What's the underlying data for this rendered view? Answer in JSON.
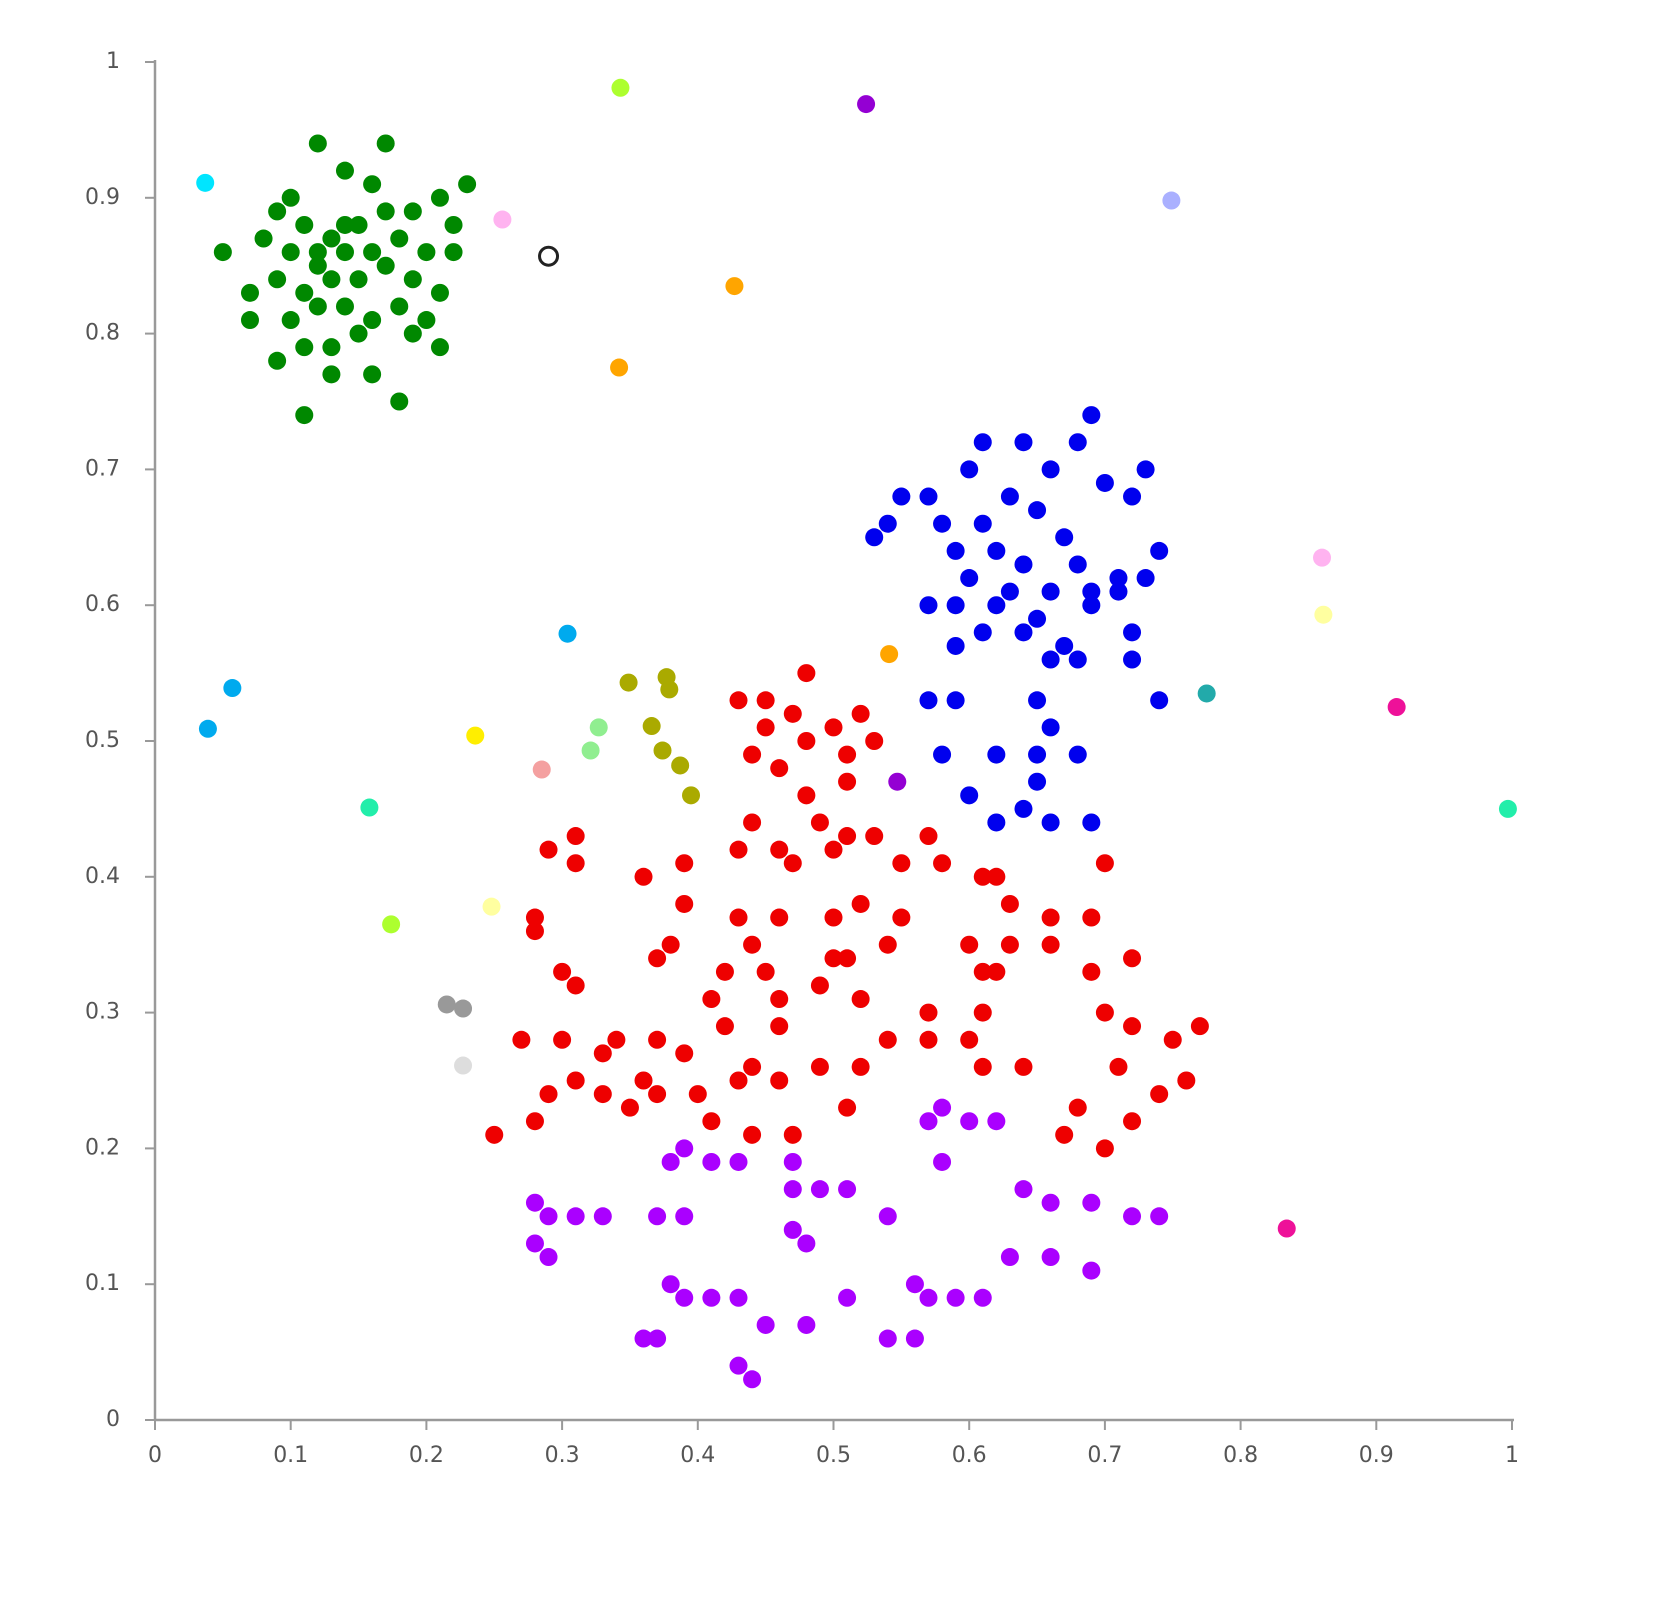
{
  "chart_data": {
    "type": "scatter",
    "xlim": [
      0,
      1
    ],
    "ylim": [
      0,
      1
    ],
    "xticks": [
      0,
      0.1,
      0.2,
      0.3,
      0.4,
      0.5,
      0.6,
      0.7,
      0.8,
      0.9,
      1
    ],
    "yticks": [
      0,
      0.1,
      0.2,
      0.3,
      0.4,
      0.5,
      0.6,
      0.7,
      0.8,
      0.9,
      1
    ],
    "grid": false,
    "series": [
      {
        "color": "#008800",
        "x": [
          0.12,
          0.17,
          0.14,
          0.23,
          0.05,
          0.09,
          0.11,
          0.13,
          0.15,
          0.17,
          0.19,
          0.21,
          0.22,
          0.08,
          0.1,
          0.12,
          0.14,
          0.16,
          0.18,
          0.2,
          0.22,
          0.07,
          0.09,
          0.11,
          0.13,
          0.15,
          0.17,
          0.19,
          0.21,
          0.07,
          0.1,
          0.12,
          0.14,
          0.16,
          0.18,
          0.2,
          0.09,
          0.11,
          0.13,
          0.15,
          0.21,
          0.13,
          0.16,
          0.18,
          0.11,
          0.19,
          0.14,
          0.16,
          0.1,
          0.12
        ],
        "values": [
          0.94,
          0.94,
          0.92,
          0.91,
          0.86,
          0.89,
          0.88,
          0.87,
          0.88,
          0.89,
          0.89,
          0.9,
          0.88,
          0.87,
          0.86,
          0.85,
          0.86,
          0.86,
          0.87,
          0.86,
          0.86,
          0.83,
          0.84,
          0.83,
          0.84,
          0.84,
          0.85,
          0.84,
          0.83,
          0.81,
          0.81,
          0.82,
          0.82,
          0.81,
          0.82,
          0.81,
          0.78,
          0.79,
          0.79,
          0.8,
          0.79,
          0.77,
          0.77,
          0.75,
          0.74,
          0.8,
          0.88,
          0.91,
          0.9,
          0.86
        ]
      },
      {
        "color": "#0000ee",
        "x": [
          0.69,
          0.61,
          0.64,
          0.68,
          0.6,
          0.66,
          0.73,
          0.7,
          0.55,
          0.57,
          0.63,
          0.72,
          0.54,
          0.58,
          0.61,
          0.65,
          0.67,
          0.53,
          0.59,
          0.62,
          0.64,
          0.68,
          0.71,
          0.74,
          0.6,
          0.63,
          0.66,
          0.69,
          0.73,
          0.57,
          0.59,
          0.62,
          0.65,
          0.69,
          0.71,
          0.59,
          0.61,
          0.64,
          0.67,
          0.72,
          0.66,
          0.68,
          0.72,
          0.74,
          0.57,
          0.59,
          0.65,
          0.66,
          0.58,
          0.62,
          0.65,
          0.68,
          0.65,
          0.6,
          0.64,
          0.62,
          0.66,
          0.69
        ],
        "values": [
          0.74,
          0.72,
          0.72,
          0.72,
          0.7,
          0.7,
          0.7,
          0.69,
          0.68,
          0.68,
          0.68,
          0.68,
          0.66,
          0.66,
          0.66,
          0.67,
          0.65,
          0.65,
          0.64,
          0.64,
          0.63,
          0.63,
          0.62,
          0.64,
          0.62,
          0.61,
          0.61,
          0.61,
          0.62,
          0.6,
          0.6,
          0.6,
          0.59,
          0.6,
          0.61,
          0.57,
          0.58,
          0.58,
          0.57,
          0.58,
          0.56,
          0.56,
          0.56,
          0.53,
          0.53,
          0.53,
          0.53,
          0.51,
          0.49,
          0.49,
          0.49,
          0.49,
          0.47,
          0.46,
          0.45,
          0.44,
          0.44,
          0.44
        ]
      },
      {
        "color": "#ee0000",
        "x": [
          0.48,
          0.43,
          0.45,
          0.52,
          0.47,
          0.45,
          0.5,
          0.48,
          0.53,
          0.44,
          0.51,
          0.46,
          0.51,
          0.48,
          0.44,
          0.49,
          0.51,
          0.53,
          0.57,
          0.29,
          0.31,
          0.43,
          0.46,
          0.5,
          0.55,
          0.58,
          0.31,
          0.36,
          0.39,
          0.47,
          0.61,
          0.7,
          0.62,
          0.39,
          0.28,
          0.43,
          0.5,
          0.52,
          0.55,
          0.63,
          0.66,
          0.69,
          0.28,
          0.46,
          0.44,
          0.54,
          0.6,
          0.63,
          0.66,
          0.37,
          0.38,
          0.5,
          0.51,
          0.72,
          0.3,
          0.42,
          0.45,
          0.61,
          0.62,
          0.69,
          0.31,
          0.41,
          0.46,
          0.49,
          0.52,
          0.57,
          0.61,
          0.7,
          0.72,
          0.77,
          0.27,
          0.3,
          0.34,
          0.37,
          0.42,
          0.46,
          0.54,
          0.57,
          0.6,
          0.75,
          0.33,
          0.39,
          0.44,
          0.49,
          0.52,
          0.61,
          0.64,
          0.71,
          0.31,
          0.36,
          0.4,
          0.46,
          0.76,
          0.29,
          0.33,
          0.37,
          0.43,
          0.74,
          0.28,
          0.35,
          0.41,
          0.51,
          0.68,
          0.25,
          0.44,
          0.47,
          0.67,
          0.7,
          0.72
        ],
        "values": [
          0.55,
          0.53,
          0.53,
          0.52,
          0.52,
          0.51,
          0.51,
          0.5,
          0.5,
          0.49,
          0.49,
          0.48,
          0.47,
          0.46,
          0.44,
          0.44,
          0.43,
          0.43,
          0.43,
          0.42,
          0.43,
          0.42,
          0.42,
          0.42,
          0.41,
          0.41,
          0.41,
          0.4,
          0.41,
          0.41,
          0.4,
          0.41,
          0.4,
          0.38,
          0.37,
          0.37,
          0.37,
          0.38,
          0.37,
          0.38,
          0.37,
          0.37,
          0.36,
          0.37,
          0.35,
          0.35,
          0.35,
          0.35,
          0.35,
          0.34,
          0.35,
          0.34,
          0.34,
          0.34,
          0.33,
          0.33,
          0.33,
          0.33,
          0.33,
          0.33,
          0.32,
          0.31,
          0.31,
          0.32,
          0.31,
          0.3,
          0.3,
          0.3,
          0.29,
          0.29,
          0.28,
          0.28,
          0.28,
          0.28,
          0.29,
          0.29,
          0.28,
          0.28,
          0.28,
          0.28,
          0.27,
          0.27,
          0.26,
          0.26,
          0.26,
          0.26,
          0.26,
          0.26,
          0.25,
          0.25,
          0.24,
          0.25,
          0.25,
          0.24,
          0.24,
          0.24,
          0.25,
          0.24,
          0.22,
          0.23,
          0.22,
          0.23,
          0.23,
          0.21,
          0.21,
          0.21,
          0.21,
          0.2,
          0.22
        ]
      },
      {
        "color": "#aa00ff",
        "x": [
          0.58,
          0.57,
          0.6,
          0.62,
          0.39,
          0.38,
          0.41,
          0.43,
          0.47,
          0.58,
          0.28,
          0.29,
          0.31,
          0.33,
          0.37,
          0.39,
          0.47,
          0.49,
          0.51,
          0.54,
          0.64,
          0.66,
          0.69,
          0.72,
          0.74,
          0.47,
          0.48,
          0.28,
          0.29,
          0.63,
          0.66,
          0.69,
          0.38,
          0.39,
          0.41,
          0.43,
          0.56,
          0.57,
          0.59,
          0.61,
          0.51,
          0.45,
          0.48,
          0.36,
          0.37,
          0.54,
          0.56,
          0.43,
          0.44
        ],
        "values": [
          0.23,
          0.22,
          0.22,
          0.22,
          0.2,
          0.19,
          0.19,
          0.19,
          0.19,
          0.19,
          0.16,
          0.15,
          0.15,
          0.15,
          0.15,
          0.15,
          0.17,
          0.17,
          0.17,
          0.15,
          0.17,
          0.16,
          0.16,
          0.15,
          0.15,
          0.14,
          0.13,
          0.13,
          0.12,
          0.12,
          0.12,
          0.11,
          0.1,
          0.09,
          0.09,
          0.09,
          0.1,
          0.09,
          0.09,
          0.09,
          0.09,
          0.07,
          0.07,
          0.06,
          0.06,
          0.06,
          0.06,
          0.04,
          0.03
        ]
      },
      {
        "color": "#adff2f",
        "x": [
          0.343,
          0.174
        ],
        "values": [
          0.981,
          0.365
        ]
      },
      {
        "color": "#9400d3",
        "x": [
          0.524,
          0.547
        ],
        "values": [
          0.969,
          0.47
        ]
      },
      {
        "color": "#00e5ff",
        "x": [
          0.037
        ],
        "values": [
          0.911
        ]
      },
      {
        "color": "#ffb3f0",
        "x": [
          0.256,
          0.86
        ],
        "values": [
          0.884,
          0.635
        ]
      },
      {
        "color": "#222222",
        "marker": "open",
        "x": [
          0.29
        ],
        "values": [
          0.857
        ]
      },
      {
        "color": "#ffa500",
        "x": [
          0.427,
          0.342,
          0.541
        ],
        "values": [
          0.835,
          0.775,
          0.564
        ]
      },
      {
        "color": "#aab0ff",
        "x": [
          0.749
        ],
        "values": [
          0.898
        ]
      },
      {
        "color": "#ffffa0",
        "x": [
          0.861,
          0.248
        ],
        "values": [
          0.593,
          0.378
        ]
      },
      {
        "color": "#00aaee",
        "x": [
          0.304,
          0.057,
          0.039
        ],
        "values": [
          0.579,
          0.539,
          0.509
        ]
      },
      {
        "color": "#aaaa00",
        "x": [
          0.349,
          0.377,
          0.379,
          0.366,
          0.374,
          0.387,
          0.395
        ],
        "values": [
          0.543,
          0.547,
          0.538,
          0.511,
          0.493,
          0.482,
          0.46
        ]
      },
      {
        "color": "#90ee90",
        "x": [
          0.327,
          0.321
        ],
        "values": [
          0.51,
          0.493
        ]
      },
      {
        "color": "#ffee00",
        "x": [
          0.236
        ],
        "values": [
          0.504
        ]
      },
      {
        "color": "#f4a0a0",
        "x": [
          0.285
        ],
        "values": [
          0.479
        ]
      },
      {
        "color": "#22eeaa",
        "x": [
          0.158,
          0.997
        ],
        "values": [
          0.451,
          0.45
        ]
      },
      {
        "color": "#22aaaa",
        "x": [
          0.775
        ],
        "values": [
          0.535
        ]
      },
      {
        "color": "#ee1199",
        "x": [
          0.915,
          0.834
        ],
        "values": [
          0.525,
          0.141
        ]
      },
      {
        "color": "#999999",
        "x": [
          0.215,
          0.227
        ],
        "values": [
          0.306,
          0.303
        ]
      },
      {
        "color": "#dddddd",
        "x": [
          0.227
        ],
        "values": [
          0.261
        ]
      }
    ]
  }
}
